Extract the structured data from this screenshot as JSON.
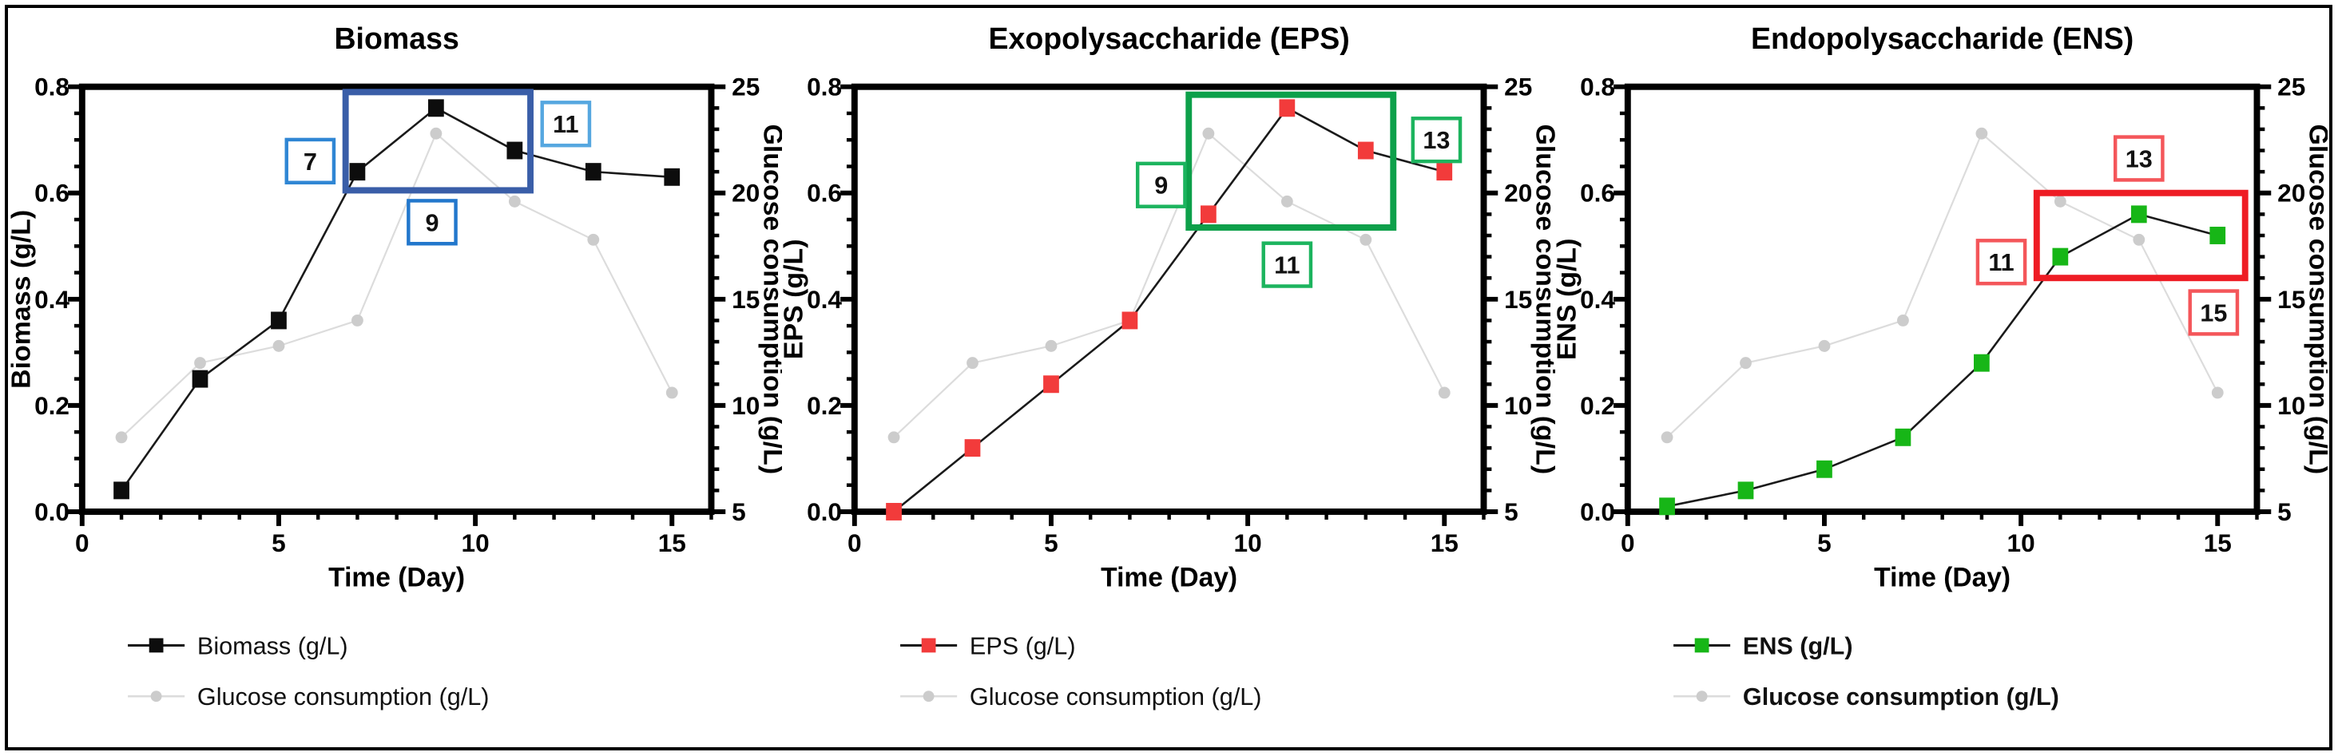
{
  "page": {
    "background": "#ffffff",
    "border_color": "#000000"
  },
  "chart_data": [
    {
      "type": "line",
      "title": "Biomass",
      "xlabel": "Time (Day)",
      "ylabel_left": "Biomass (g/L)",
      "ylabel_right": "Glucose consumption (g/L)",
      "x": [
        1,
        3,
        5,
        7,
        9,
        11,
        13,
        15
      ],
      "xlim": [
        0,
        16
      ],
      "xticks": [
        0,
        5,
        10,
        15
      ],
      "x_minor_step": 1,
      "ylim_left": [
        0,
        0.8
      ],
      "yticks_left": [
        "0.0",
        "0.2",
        "0.4",
        "0.6",
        "0.8"
      ],
      "y_left_minor_step": 0.05,
      "ylim_right": [
        5,
        25
      ],
      "yticks_right": [
        "5",
        "10",
        "15",
        "20",
        "25"
      ],
      "y_right_minor_step": 1,
      "grid": false,
      "legend_position": "bottom",
      "legend_bold": false,
      "series": [
        {
          "name": "Biomass (g/L)",
          "axis": "left",
          "line_color": "#1a1a1a",
          "marker": "square",
          "marker_color": "#0d0d0d",
          "values": [
            0.04,
            0.25,
            0.36,
            0.64,
            0.76,
            0.68,
            0.64,
            0.63
          ]
        },
        {
          "name": "Glucose consumption (g/L)",
          "axis": "right",
          "line_color": "#dcdcdc",
          "marker": "circle",
          "marker_color": "#cccccc",
          "values": [
            8.5,
            12.0,
            12.8,
            14.0,
            22.8,
            19.6,
            17.8,
            10.6
          ]
        }
      ],
      "highlight_box": {
        "x0": 6.7,
        "x1": 11.4,
        "y0": 0.605,
        "y1": 0.79,
        "color": "#3a5ea8"
      },
      "callouts": [
        {
          "label": "7",
          "x": 5.8,
          "y": 0.66,
          "color": "#2f86d4"
        },
        {
          "label": "9",
          "x": 8.9,
          "y": 0.545,
          "color": "#2277cc"
        },
        {
          "label": "11",
          "x": 12.3,
          "y": 0.73,
          "color": "#56a7e0"
        }
      ]
    },
    {
      "type": "line",
      "title": "Exopolysaccharide (EPS)",
      "xlabel": "Time (Day)",
      "ylabel_left": "EPS (g/L)",
      "ylabel_right": "Glucose consumption (g/L)",
      "x": [
        1,
        3,
        5,
        7,
        9,
        11,
        13,
        15
      ],
      "xlim": [
        0,
        16
      ],
      "xticks": [
        0,
        5,
        10,
        15
      ],
      "x_minor_step": 1,
      "ylim_left": [
        0,
        0.8
      ],
      "yticks_left": [
        "0.0",
        "0.2",
        "0.4",
        "0.6",
        "0.8"
      ],
      "y_left_minor_step": 0.05,
      "ylim_right": [
        5,
        25
      ],
      "yticks_right": [
        "5",
        "10",
        "15",
        "20",
        "25"
      ],
      "y_right_minor_step": 1,
      "grid": false,
      "legend_position": "bottom",
      "legend_bold": false,
      "series": [
        {
          "name": "EPS (g/L)",
          "axis": "left",
          "line_color": "#1a1a1a",
          "marker": "square",
          "marker_color": "#f23b3b",
          "values": [
            0.0,
            0.12,
            0.24,
            0.36,
            0.56,
            0.76,
            0.68,
            0.64
          ]
        },
        {
          "name": "Glucose consumption (g/L)",
          "axis": "right",
          "line_color": "#dcdcdc",
          "marker": "circle",
          "marker_color": "#cccccc",
          "values": [
            8.5,
            12.0,
            12.8,
            14.0,
            22.8,
            19.6,
            17.8,
            10.6
          ]
        }
      ],
      "highlight_box": {
        "x0": 8.5,
        "x1": 13.7,
        "y0": 0.535,
        "y1": 0.785,
        "color": "#0da04a"
      },
      "callouts": [
        {
          "label": "9",
          "x": 7.8,
          "y": 0.615,
          "color": "#1cb45e"
        },
        {
          "label": "11",
          "x": 11.0,
          "y": 0.465,
          "color": "#1cb45e"
        },
        {
          "label": "13",
          "x": 14.8,
          "y": 0.7,
          "color": "#1cb45e"
        }
      ]
    },
    {
      "type": "line",
      "title": "Endopolysaccharide (ENS)",
      "xlabel": "Time (Day)",
      "ylabel_left": "ENS (g/L)",
      "ylabel_right": "Glucose consumption (g/L)",
      "x": [
        1,
        3,
        5,
        7,
        9,
        11,
        13,
        15
      ],
      "xlim": [
        0,
        16
      ],
      "xticks": [
        0,
        5,
        10,
        15
      ],
      "x_minor_step": 1,
      "ylim_left": [
        0,
        0.8
      ],
      "yticks_left": [
        "0.0",
        "0.2",
        "0.4",
        "0.6",
        "0.8"
      ],
      "y_left_minor_step": 0.05,
      "ylim_right": [
        5,
        25
      ],
      "yticks_right": [
        "5",
        "10",
        "15",
        "20",
        "25"
      ],
      "y_right_minor_step": 1,
      "grid": false,
      "legend_position": "bottom",
      "legend_bold": true,
      "series": [
        {
          "name": "ENS (g/L)",
          "axis": "left",
          "line_color": "#1a1a1a",
          "marker": "square",
          "marker_color": "#17b617",
          "values": [
            0.01,
            0.04,
            0.08,
            0.14,
            0.28,
            0.48,
            0.56,
            0.52
          ]
        },
        {
          "name": "Glucose consumption (g/L)",
          "axis": "right",
          "line_color": "#dcdcdc",
          "marker": "circle",
          "marker_color": "#cccccc",
          "values": [
            8.5,
            12.0,
            12.8,
            14.0,
            22.8,
            19.6,
            17.8,
            10.6
          ]
        }
      ],
      "highlight_box": {
        "x0": 10.4,
        "x1": 15.7,
        "y0": 0.44,
        "y1": 0.6,
        "color": "#ee1c24"
      },
      "callouts": [
        {
          "label": "11",
          "x": 9.5,
          "y": 0.47,
          "color": "#f4565a"
        },
        {
          "label": "13",
          "x": 13.0,
          "y": 0.665,
          "color": "#f4565a"
        },
        {
          "label": "15",
          "x": 14.9,
          "y": 0.375,
          "color": "#f4565a"
        }
      ]
    }
  ]
}
